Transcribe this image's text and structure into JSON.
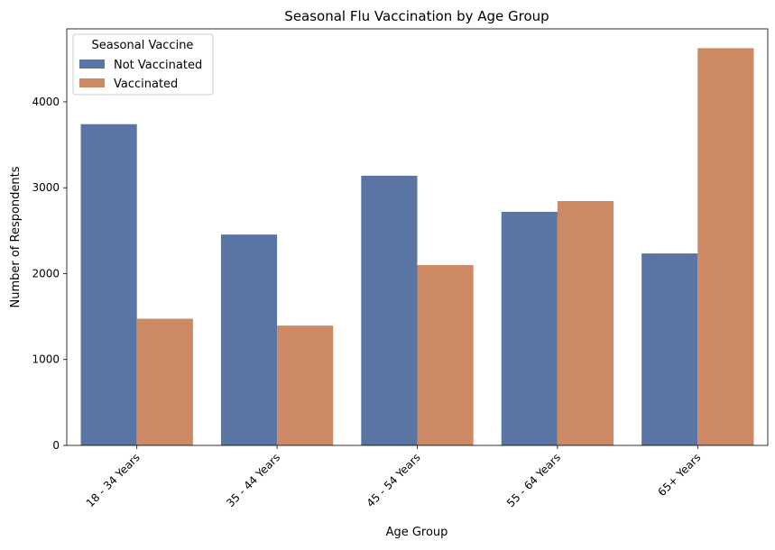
{
  "chart_data": {
    "type": "bar",
    "title": "Seasonal Flu Vaccination by Age Group",
    "xlabel": "Age Group",
    "ylabel": "Number of Respondents",
    "categories": [
      "18 - 34 Years",
      "35 - 44 Years",
      "45 - 54 Years",
      "55 - 64 Years",
      "65+ Years"
    ],
    "series": [
      {
        "name": "Not Vaccinated",
        "color": "#5975a4",
        "values": [
          3740,
          2455,
          3140,
          2720,
          2235
        ]
      },
      {
        "name": "Vaccinated",
        "color": "#cc8963",
        "values": [
          1475,
          1395,
          2100,
          2845,
          4625
        ]
      }
    ],
    "ylim": [
      0,
      4850
    ],
    "yticks": [
      0,
      1000,
      2000,
      3000,
      4000
    ],
    "legend": {
      "title": "Seasonal Vaccine",
      "position": "top-left"
    },
    "grid": false
  }
}
